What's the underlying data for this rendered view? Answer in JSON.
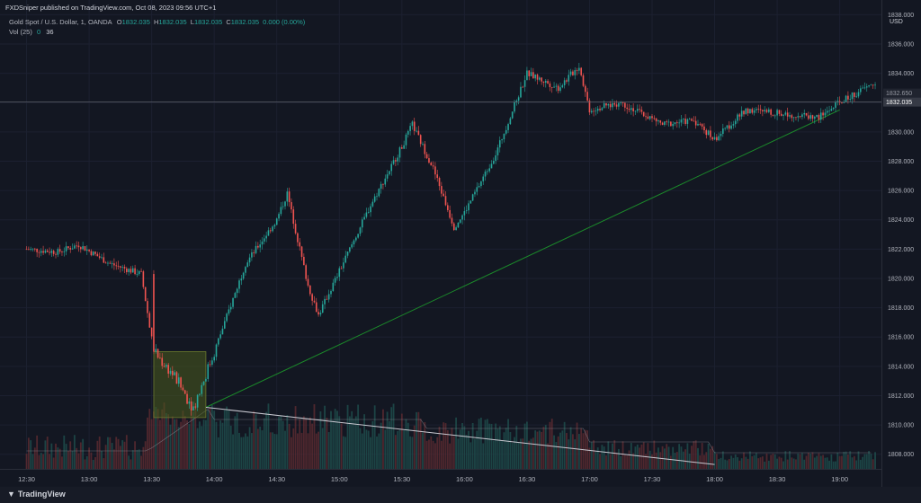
{
  "header": {
    "publisher": "FXDSniper published on TradingView.com, Oct 08, 2023 09:56 UTC+1",
    "symbol": "Gold Spot / U.S. Dollar, 1, OANDA",
    "ohlc": {
      "o_label": "O",
      "o_value": "1832.035",
      "h_label": "H",
      "h_value": "1832.035",
      "l_label": "L",
      "l_value": "1832.035",
      "c_label": "C",
      "c_value": "1832.035",
      "change": "0.000 (0.00%)"
    },
    "volume": {
      "label": "Vol (25)",
      "value1": "0",
      "value2": "36"
    }
  },
  "price_axis": {
    "currency": "USD",
    "ticks": [
      "1838.000",
      "1836.000",
      "1834.000",
      "1832.000",
      "1830.000",
      "1828.000",
      "1826.000",
      "1824.000",
      "1822.000",
      "1820.000",
      "1818.000",
      "1816.000",
      "1814.000",
      "1812.000",
      "1810.000",
      "1808.000"
    ],
    "tag_1": "1832.650",
    "tag_current": "1832.035"
  },
  "time_axis": {
    "ticks": [
      "12:30",
      "13:00",
      "13:30",
      "14:00",
      "14:30",
      "15:00",
      "15:30",
      "16:00",
      "16:30",
      "17:00",
      "17:30",
      "18:00",
      "18:30",
      "19:00"
    ]
  },
  "footer": {
    "brand": "TradingView"
  },
  "colors": {
    "up": "#26a69a",
    "down": "#ef5350",
    "trendline": "#1b8a2a",
    "volume_trend": "#c8c8d0",
    "box_fill": "#4b5b1e",
    "background": "#131722"
  },
  "chart_data": {
    "type": "candlestick",
    "y_range": [
      1807,
      1839
    ],
    "x_range": [
      "12:30",
      "19:20"
    ],
    "last_price": 1832.035,
    "price_series_approx": [
      {
        "t": "12:30",
        "p": 1822.0
      },
      {
        "t": "12:45",
        "p": 1821.8
      },
      {
        "t": "12:55",
        "p": 1822.3
      },
      {
        "t": "13:10",
        "p": 1821.0
      },
      {
        "t": "13:25",
        "p": 1820.3
      },
      {
        "t": "13:31",
        "p": 1815.0
      },
      {
        "t": "13:40",
        "p": 1813.5
      },
      {
        "t": "13:50",
        "p": 1811.2
      },
      {
        "t": "14:00",
        "p": 1815.0
      },
      {
        "t": "14:15",
        "p": 1821.0
      },
      {
        "t": "14:30",
        "p": 1824.0
      },
      {
        "t": "14:35",
        "p": 1825.8
      },
      {
        "t": "14:45",
        "p": 1819.5
      },
      {
        "t": "14:50",
        "p": 1817.5
      },
      {
        "t": "15:00",
        "p": 1820.5
      },
      {
        "t": "15:15",
        "p": 1825.0
      },
      {
        "t": "15:30",
        "p": 1829.0
      },
      {
        "t": "15:35",
        "p": 1830.5
      },
      {
        "t": "15:45",
        "p": 1827.5
      },
      {
        "t": "15:55",
        "p": 1823.5
      },
      {
        "t": "16:00",
        "p": 1824.5
      },
      {
        "t": "16:15",
        "p": 1828.5
      },
      {
        "t": "16:30",
        "p": 1834.0
      },
      {
        "t": "16:45",
        "p": 1833.0
      },
      {
        "t": "16:55",
        "p": 1834.5
      },
      {
        "t": "17:00",
        "p": 1831.5
      },
      {
        "t": "17:15",
        "p": 1832.0
      },
      {
        "t": "17:35",
        "p": 1830.5
      },
      {
        "t": "17:50",
        "p": 1830.8
      },
      {
        "t": "18:00",
        "p": 1829.5
      },
      {
        "t": "18:15",
        "p": 1831.5
      },
      {
        "t": "18:35",
        "p": 1831.2
      },
      {
        "t": "18:50",
        "p": 1831.0
      },
      {
        "t": "19:00",
        "p": 1832.0
      },
      {
        "t": "19:15",
        "p": 1833.2
      }
    ],
    "annotations": {
      "box": {
        "t_start": "13:31",
        "t_end": "13:56",
        "p_low": 1810.5,
        "p_high": 1815.0
      },
      "trendline": {
        "from": {
          "t": "13:56",
          "p": 1811.2
        },
        "to": {
          "t": "19:00",
          "p": 1831.5
        }
      },
      "volume_trendline": {
        "from_t": "13:56",
        "to_t": "18:00"
      }
    }
  }
}
